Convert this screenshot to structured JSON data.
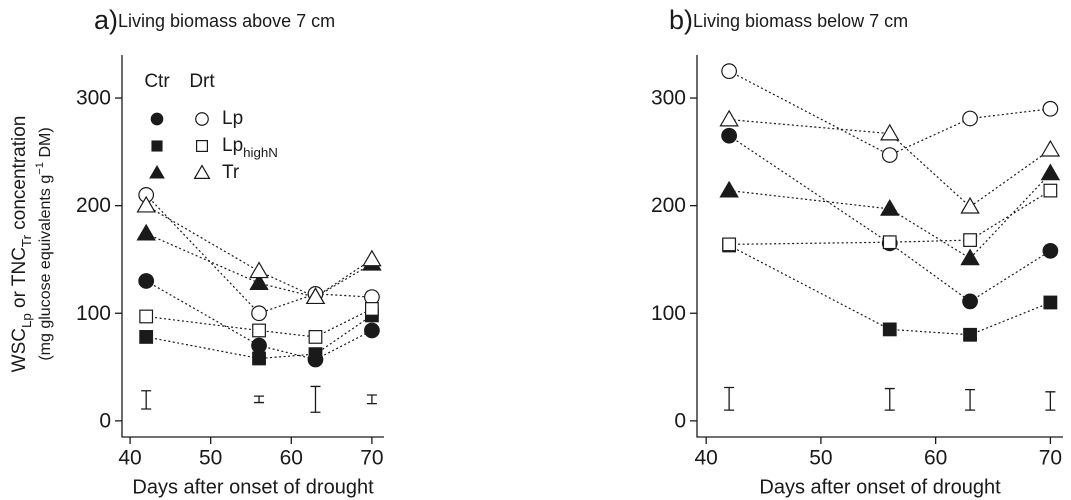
{
  "chart_data": [
    {
      "type": "line",
      "panel": "a)",
      "title": "Living biomass above 7 cm",
      "xlabel": "Days after onset of drought",
      "ylabel": [
        "WSC",
        "Lp",
        " or TNC",
        "Tr",
        " concentration"
      ],
      "ylabel2": [
        "(mg glucose equivalents g",
        "−1",
        " DM)"
      ],
      "x": [
        42,
        56,
        63,
        70
      ],
      "xlim": [
        39,
        71.5
      ],
      "xticks": [
        40,
        50,
        60,
        70
      ],
      "ylim": [
        -15,
        340
      ],
      "yticks": [
        0,
        100,
        200,
        300
      ],
      "legend": {
        "columns": [
          "Ctr",
          "Drt"
        ],
        "rows": [
          [
            "Lp"
          ],
          [
            "Lp",
            "highN"
          ],
          [
            "Tr"
          ]
        ]
      },
      "series": [
        {
          "marker": "circle",
          "filled": true,
          "values": [
            130,
            70,
            57,
            84
          ]
        },
        {
          "marker": "circle",
          "filled": false,
          "values": [
            210,
            100,
            118,
            115
          ]
        },
        {
          "marker": "square",
          "filled": true,
          "values": [
            78,
            58,
            62,
            98
          ]
        },
        {
          "marker": "square",
          "filled": false,
          "values": [
            97,
            84,
            78,
            104
          ]
        },
        {
          "marker": "triangle",
          "filled": true,
          "values": [
            174,
            128,
            115,
            146
          ]
        },
        {
          "marker": "triangle",
          "filled": false,
          "values": [
            200,
            139,
            115,
            150
          ]
        }
      ],
      "error_bars": {
        "values": [
          19.5,
          20,
          20,
          20
        ],
        "errors": [
          8.5,
          3,
          12,
          4
        ]
      }
    },
    {
      "type": "line",
      "panel": "b)",
      "title": "Living biomass below 7 cm",
      "xlabel": "Days after onset of drought",
      "x": [
        42,
        56,
        63,
        70
      ],
      "xlim": [
        39.2,
        71.1
      ],
      "xticks": [
        40,
        50,
        60,
        70
      ],
      "ylim": [
        -15,
        340
      ],
      "yticks": [
        0,
        100,
        200,
        300
      ],
      "series": [
        {
          "marker": "circle",
          "filled": true,
          "values": [
            265,
            165,
            111,
            158
          ]
        },
        {
          "marker": "circle",
          "filled": false,
          "values": [
            325,
            247,
            281,
            290
          ]
        },
        {
          "marker": "square",
          "filled": true,
          "values": [
            163,
            85,
            80,
            110
          ]
        },
        {
          "marker": "square",
          "filled": false,
          "values": [
            164,
            166,
            168,
            214
          ]
        },
        {
          "marker": "triangle",
          "filled": true,
          "values": [
            214,
            197,
            151,
            230
          ]
        },
        {
          "marker": "triangle",
          "filled": false,
          "values": [
            280,
            267,
            199,
            252
          ]
        }
      ],
      "error_bars": {
        "values": [
          20.5,
          20,
          19.5,
          18.5
        ],
        "errors": [
          10.5,
          10,
          9.5,
          8.5
        ]
      }
    }
  ]
}
